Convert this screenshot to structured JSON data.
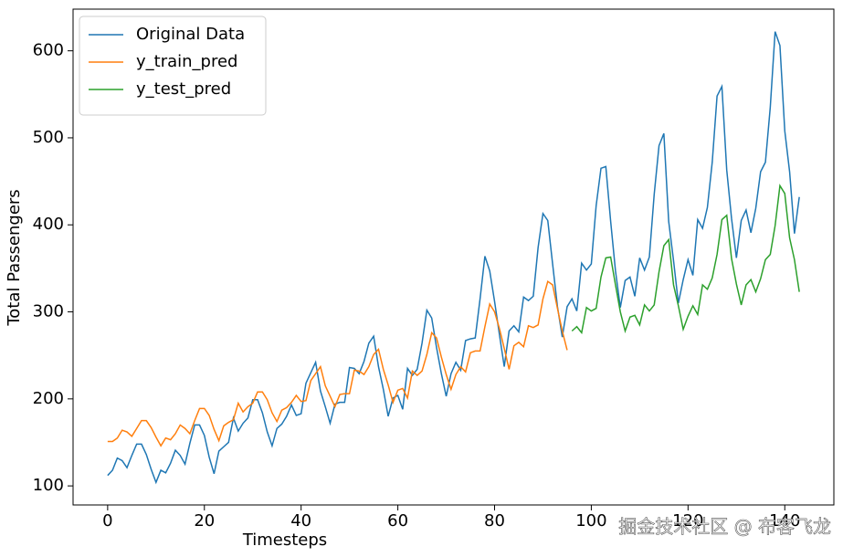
{
  "chart_data": {
    "type": "line",
    "xlabel": "Timesteps",
    "ylabel": "Total Passengers",
    "watermark": "掘金技术社区 @ 布客飞龙",
    "legend": "upper left",
    "grid": false,
    "xlim": [
      -7.15,
      150.15
    ],
    "xticks": [
      0,
      20,
      40,
      60,
      80,
      100,
      120,
      140
    ],
    "ylim": [
      78.1,
      647.9
    ],
    "yticks": [
      100,
      200,
      300,
      400,
      500,
      600
    ],
    "x": [
      0,
      1,
      2,
      3,
      4,
      5,
      6,
      7,
      8,
      9,
      10,
      11,
      12,
      13,
      14,
      15,
      16,
      17,
      18,
      19,
      20,
      21,
      22,
      23,
      24,
      25,
      26,
      27,
      28,
      29,
      30,
      31,
      32,
      33,
      34,
      35,
      36,
      37,
      38,
      39,
      40,
      41,
      42,
      43,
      44,
      45,
      46,
      47,
      48,
      49,
      50,
      51,
      52,
      53,
      54,
      55,
      56,
      57,
      58,
      59,
      60,
      61,
      62,
      63,
      64,
      65,
      66,
      67,
      68,
      69,
      70,
      71,
      72,
      73,
      74,
      75,
      76,
      77,
      78,
      79,
      80,
      81,
      82,
      83,
      84,
      85,
      86,
      87,
      88,
      89,
      90,
      91,
      92,
      93,
      94,
      95,
      96,
      97,
      98,
      99,
      100,
      101,
      102,
      103,
      104,
      105,
      106,
      107,
      108,
      109,
      110,
      111,
      112,
      113,
      114,
      115,
      116,
      117,
      118,
      119,
      120,
      121,
      122,
      123,
      124,
      125,
      126,
      127,
      128,
      129,
      130,
      131,
      132,
      133,
      134,
      135,
      136,
      137,
      138,
      139,
      140,
      141,
      142,
      143
    ],
    "series": [
      {
        "name": "Original Data",
        "color": "#1f77b4",
        "values": [
          112,
          118,
          132,
          129,
          121,
          135,
          148,
          148,
          136,
          119,
          104,
          118,
          115,
          126,
          141,
          135,
          125,
          149,
          170,
          170,
          158,
          133,
          114,
          140,
          145,
          150,
          178,
          163,
          172,
          178,
          199,
          199,
          184,
          162,
          146,
          166,
          171,
          180,
          193,
          181,
          183,
          218,
          230,
          242,
          209,
          191,
          172,
          194,
          196,
          196,
          236,
          235,
          229,
          243,
          264,
          272,
          237,
          211,
          180,
          201,
          204,
          188,
          235,
          227,
          234,
          264,
          302,
          293,
          259,
          229,
          203,
          229,
          242,
          233,
          267,
          269,
          270,
          315,
          364,
          347,
          312,
          274,
          237,
          278,
          284,
          277,
          317,
          313,
          318,
          374,
          413,
          405,
          355,
          306,
          271,
          306,
          315,
          301,
          356,
          348,
          355,
          422,
          465,
          467,
          404,
          347,
          305,
          336,
          340,
          318,
          362,
          348,
          363,
          435,
          491,
          505,
          404,
          359,
          310,
          337,
          360,
          342,
          406,
          396,
          420,
          472,
          548,
          559,
          463,
          407,
          362,
          405,
          417,
          391,
          419,
          461,
          472,
          535,
          622,
          606,
          508,
          461,
          390,
          432
        ]
      },
      {
        "name": "y_train_pred",
        "color": "#ff7f0e",
        "values": [
          151,
          151,
          155,
          164,
          162,
          157,
          166,
          175,
          175,
          167,
          156,
          146,
          155,
          153,
          160,
          170,
          166,
          160,
          175,
          189,
          189,
          181,
          165,
          152,
          169,
          173,
          176,
          195,
          185,
          191,
          195,
          208,
          208,
          199,
          184,
          174,
          187,
          190,
          196,
          204,
          197,
          198,
          221,
          229,
          237,
          215,
          203,
          191,
          205,
          206,
          206,
          233,
          232,
          228,
          237,
          251,
          257,
          234,
          216,
          196,
          210,
          212,
          201,
          232,
          227,
          232,
          251,
          276,
          270,
          248,
          228,
          211,
          228,
          237,
          231,
          253,
          255,
          255,
          283,
          309,
          300,
          281,
          258,
          234,
          261,
          265,
          260,
          284,
          282,
          285,
          315,
          335,
          331,
          304,
          278,
          256,
          null,
          null,
          null,
          null,
          null,
          null,
          null,
          null,
          null,
          null,
          null,
          null,
          null,
          null,
          null,
          null,
          null,
          null,
          null,
          null,
          null,
          null,
          null,
          null,
          null,
          null,
          null,
          null,
          null,
          null,
          null,
          null,
          null,
          null,
          null,
          null,
          null,
          null,
          null,
          null,
          null,
          null,
          null,
          null,
          null,
          null,
          null,
          null
        ]
      },
      {
        "name": "y_test_pred",
        "color": "#2ca02c",
        "values": [
          null,
          null,
          null,
          null,
          null,
          null,
          null,
          null,
          null,
          null,
          null,
          null,
          null,
          null,
          null,
          null,
          null,
          null,
          null,
          null,
          null,
          null,
          null,
          null,
          null,
          null,
          null,
          null,
          null,
          null,
          null,
          null,
          null,
          null,
          null,
          null,
          null,
          null,
          null,
          null,
          null,
          null,
          null,
          null,
          null,
          null,
          null,
          null,
          null,
          null,
          null,
          null,
          null,
          null,
          null,
          null,
          null,
          null,
          null,
          null,
          null,
          null,
          null,
          null,
          null,
          null,
          null,
          null,
          null,
          null,
          null,
          null,
          null,
          null,
          null,
          null,
          null,
          null,
          null,
          null,
          null,
          null,
          null,
          null,
          null,
          null,
          null,
          null,
          null,
          null,
          null,
          null,
          null,
          null,
          null,
          null,
          278,
          283,
          276,
          305,
          301,
          304,
          340,
          362,
          363,
          331,
          300,
          278,
          294,
          296,
          285,
          308,
          301,
          308,
          346,
          376,
          383,
          331,
          307,
          280,
          295,
          307,
          297,
          331,
          326,
          339,
          366,
          406,
          411,
          361,
          332,
          308,
          331,
          337,
          323,
          338,
          360,
          366,
          399,
          445,
          436,
          385,
          360,
          323
        ]
      }
    ]
  }
}
